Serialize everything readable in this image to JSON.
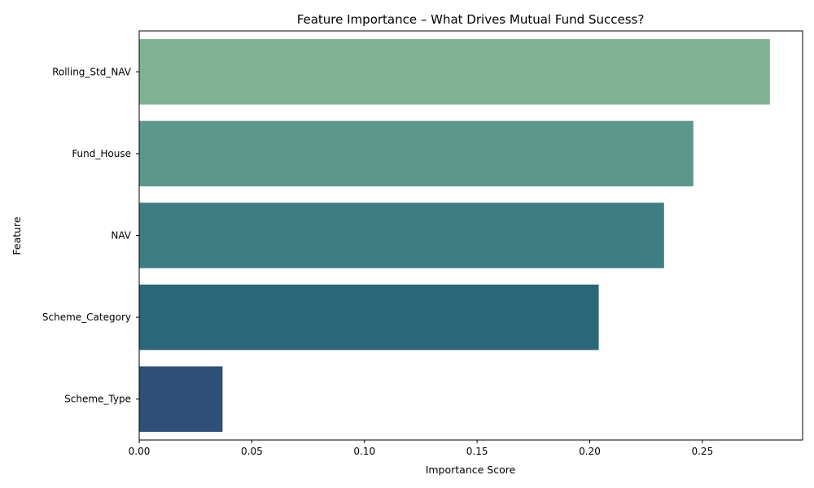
{
  "chart_data": {
    "type": "bar",
    "orientation": "horizontal",
    "title": "Feature Importance – What Drives Mutual Fund Success?",
    "xlabel": "Importance Score",
    "ylabel": "Feature",
    "categories": [
      "Rolling_Std_NAV",
      "Fund_House",
      "NAV",
      "Scheme_Category",
      "Scheme_Type"
    ],
    "values": [
      0.28,
      0.246,
      0.233,
      0.204,
      0.037
    ],
    "colors": [
      "#80b294",
      "#5c978c",
      "#3f7d82",
      "#2c6679",
      "#2f4f79"
    ],
    "xlim": [
      0,
      0.2945
    ],
    "xticks": [
      0.0,
      0.05,
      0.1,
      0.15,
      0.2,
      0.25
    ],
    "xtick_labels": [
      "0.00",
      "0.05",
      "0.10",
      "0.15",
      "0.20",
      "0.25"
    ],
    "grid": false,
    "legend": "none"
  }
}
